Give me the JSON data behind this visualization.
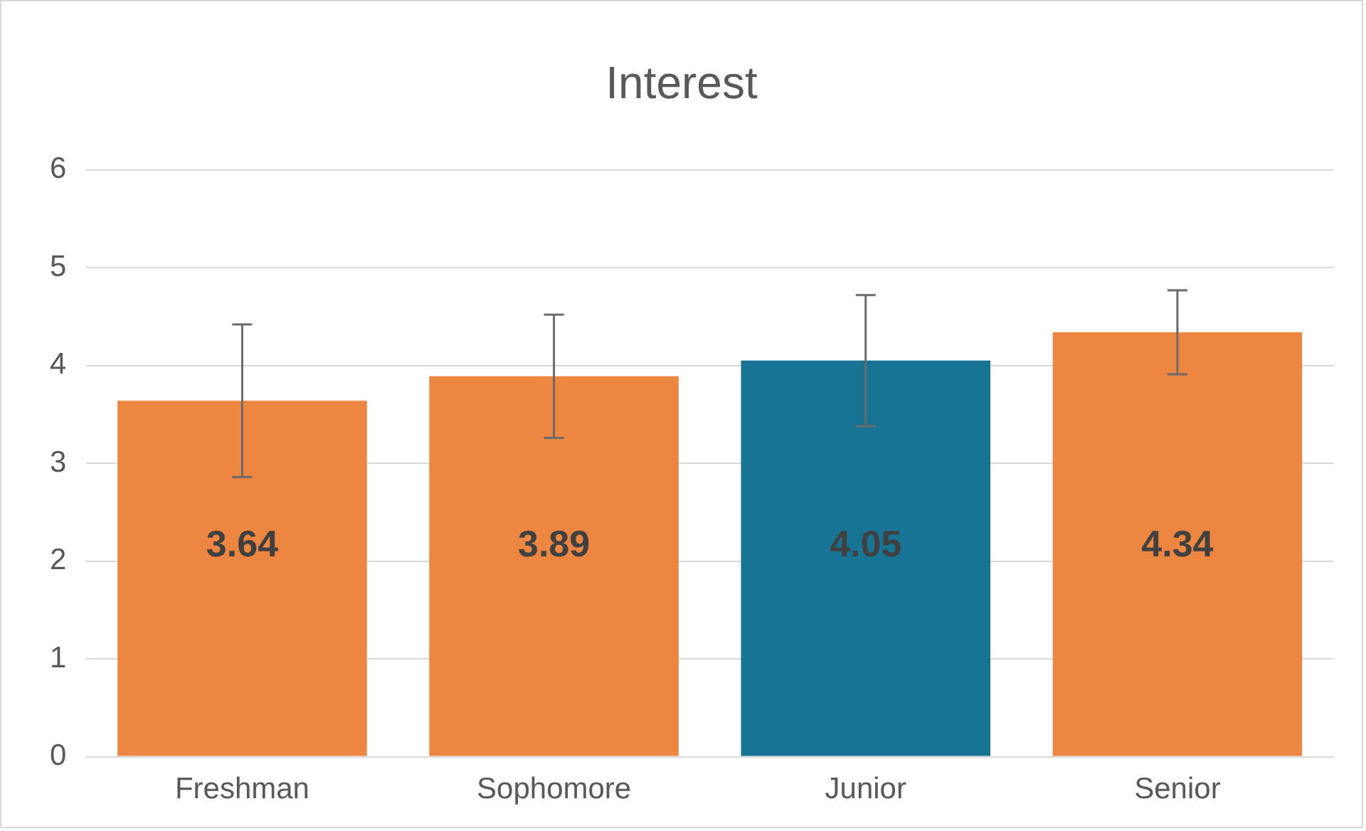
{
  "chart_data": {
    "type": "bar",
    "title": "Interest",
    "categories": [
      "Freshman",
      "Sophomore",
      "Junior",
      "Senior"
    ],
    "values": [
      3.64,
      3.89,
      4.05,
      4.34
    ],
    "colors": [
      "#ed8640",
      "#ed8640",
      "#177495",
      "#ed8640"
    ],
    "errors": [
      0.78,
      0.63,
      0.67,
      0.43
    ],
    "ylim": [
      0,
      6
    ],
    "yticks": [
      0,
      1,
      2,
      3,
      4,
      5,
      6
    ],
    "grid": "y",
    "legend": false,
    "data_labels": true
  }
}
